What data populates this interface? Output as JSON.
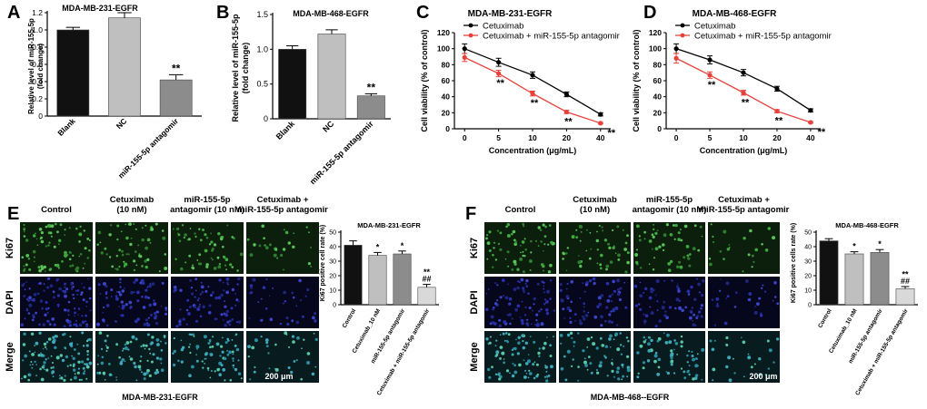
{
  "panels": {
    "A": {
      "letter": "A",
      "title": "MDA-MB-231-EGFR",
      "ylabel_lines": [
        "Relative level of miR-155-5p",
        "(fold change)"
      ]
    },
    "B": {
      "letter": "B",
      "title": "MDA-MB-468-EGFR",
      "ylabel_lines": [
        "Relative level of miR-155-5p",
        "(fold change)"
      ]
    },
    "C": {
      "letter": "C",
      "title": "MDA-MB-231-EGFR"
    },
    "D": {
      "letter": "D",
      "title": "MDA-MB-468-EGFR"
    },
    "E": {
      "letter": "E",
      "cols": [
        "Control",
        "Cetuximab\n(10 nM)",
        "miR-155-5p\nantagomir (10 nM)",
        "Cetuximab +\nmiR-155-5p antagomir"
      ],
      "rows": [
        "Ki67",
        "DAPI",
        "Merge"
      ],
      "scalebar": "200 μm",
      "caption": "MDA-MB-231-EGFR"
    },
    "F": {
      "letter": "F",
      "cols": [
        "Control",
        "Cetuximab\n(10 nM)",
        "miR-155-5p\nantagomir (10 nM)",
        "Cetuximab +\nmiR-155-5p antagomir"
      ],
      "rows": [
        "Ki67",
        "DAPI",
        "Merge"
      ],
      "scalebar": "200 μm",
      "caption": "MDA-MB-468--EGFR"
    }
  },
  "chart_data": [
    {
      "id": "A",
      "type": "bar",
      "title": "MDA-MB-231-EGFR",
      "ylabel": "Relative level of miR-155-5p (fold change)",
      "categories": [
        "Blank",
        "NC",
        "miR-155-5p antagomir"
      ],
      "values": [
        1.0,
        1.14,
        0.42
      ],
      "errors": [
        0.03,
        0.06,
        0.06
      ],
      "annotations": [
        "",
        "",
        "**"
      ],
      "colors": [
        "#111111",
        "#bfbfbf",
        "#8c8c8c"
      ],
      "ylim": [
        0,
        1.2
      ],
      "yticks": [
        0,
        0.2,
        0.4,
        0.6,
        0.8,
        1.0,
        1.2
      ],
      "ytick_labels": [
        "0",
        "0.2",
        "0.4",
        "0.6",
        "0.8",
        "1.0",
        "1.2"
      ]
    },
    {
      "id": "B",
      "type": "bar",
      "title": "MDA-MB-468-EGFR",
      "ylabel": "Relative level of miR-155-5p (fold change)",
      "categories": [
        "Blank",
        "NC",
        "miR-155-5p antagomir"
      ],
      "values": [
        1.0,
        1.22,
        0.33
      ],
      "errors": [
        0.05,
        0.06,
        0.03
      ],
      "annotations": [
        "",
        "",
        "**"
      ],
      "colors": [
        "#111111",
        "#bfbfbf",
        "#8c8c8c"
      ],
      "ylim": [
        0,
        1.5
      ],
      "yticks": [
        0,
        0.5,
        1.0,
        1.5
      ],
      "ytick_labels": [
        "0",
        "0.5",
        "1.0",
        "1.5"
      ]
    },
    {
      "id": "C",
      "type": "line",
      "title": "MDA-MB-231-EGFR",
      "xlabel": "Concentration (μg/mL)",
      "ylabel": "Cell viability (% of control)",
      "x": [
        "0",
        "5",
        "10",
        "20",
        "40"
      ],
      "ylim": [
        0,
        120
      ],
      "yticks": [
        0,
        20,
        40,
        60,
        80,
        100,
        120
      ],
      "series": [
        {
          "name": "Cetuximab",
          "color": "#000000",
          "values": [
            100,
            83,
            67,
            43,
            18
          ],
          "errors": [
            6,
            5,
            4,
            3,
            2
          ],
          "annotations": [
            "",
            "",
            "",
            "",
            ""
          ]
        },
        {
          "name": "Cetuximab + miR-155-5p antagomir",
          "color": "#e8413c",
          "values": [
            89,
            69,
            44,
            21,
            7
          ],
          "errors": [
            5,
            4,
            3,
            2,
            1
          ],
          "annotations": [
            "",
            "**",
            "**",
            "**",
            "**"
          ]
        }
      ],
      "legend": "top-right"
    },
    {
      "id": "D",
      "type": "line",
      "title": "MDA-MB-468-EGFR",
      "xlabel": "Concentration (μg/mL)",
      "ylabel": "Cell viability (% of control)",
      "x": [
        "0",
        "5",
        "10",
        "20",
        "40"
      ],
      "ylim": [
        0,
        120
      ],
      "yticks": [
        0,
        20,
        40,
        60,
        80,
        100,
        120
      ],
      "series": [
        {
          "name": "Cetuximab",
          "color": "#000000",
          "values": [
            100,
            86,
            70,
            50,
            23
          ],
          "errors": [
            6,
            5,
            4,
            3,
            2
          ],
          "annotations": [
            "",
            "",
            "",
            "",
            ""
          ]
        },
        {
          "name": "Cetuximab + miR-155-5p antagomir",
          "color": "#e8413c",
          "values": [
            88,
            67,
            45,
            22,
            8
          ],
          "errors": [
            6,
            4,
            3,
            2,
            1
          ],
          "annotations": [
            "",
            "**",
            "**",
            "**",
            "**"
          ]
        }
      ],
      "legend": "top-right"
    },
    {
      "id": "E",
      "type": "bar",
      "title": "MDA-MB-231-EGFR",
      "ylabel": "Ki67 positive cell rate (%)",
      "categories": [
        "Control",
        "Cetuximab_10 nM",
        "miR-155-5p antagomir",
        "Cetuximab + miR-155-5p antagomir"
      ],
      "values": [
        41,
        34,
        35,
        12
      ],
      "errors": [
        3,
        2,
        2,
        2
      ],
      "annotations": [
        "",
        "*",
        "*",
        "**\n##"
      ],
      "colors": [
        "#111111",
        "#bfbfbf",
        "#8c8c8c",
        "#d9d9d9"
      ],
      "ylim": [
        0,
        50
      ],
      "yticks": [
        0,
        10,
        20,
        30,
        40,
        50
      ],
      "ytick_labels": [
        "0",
        "10",
        "20",
        "30",
        "40",
        "50"
      ]
    },
    {
      "id": "F",
      "type": "bar",
      "title": "MDA-MB-468-EGFR",
      "ylabel": "Ki67 positive cells rate (%)",
      "categories": [
        "Control",
        "Cetuximab_10 nM",
        "miR-155-5p antagomir",
        "Cetuximab + miR-155-5p antagomir"
      ],
      "values": [
        44,
        35,
        36,
        11
      ],
      "errors": [
        1.5,
        1.5,
        2,
        1.5
      ],
      "annotations": [
        "",
        "*",
        "*",
        "**\n##"
      ],
      "colors": [
        "#111111",
        "#bfbfbf",
        "#8c8c8c",
        "#d9d9d9"
      ],
      "ylim": [
        0,
        50
      ],
      "yticks": [
        0,
        10,
        20,
        30,
        40,
        50
      ],
      "ytick_labels": [
        "0",
        "10",
        "20",
        "30",
        "40",
        "50"
      ]
    }
  ]
}
